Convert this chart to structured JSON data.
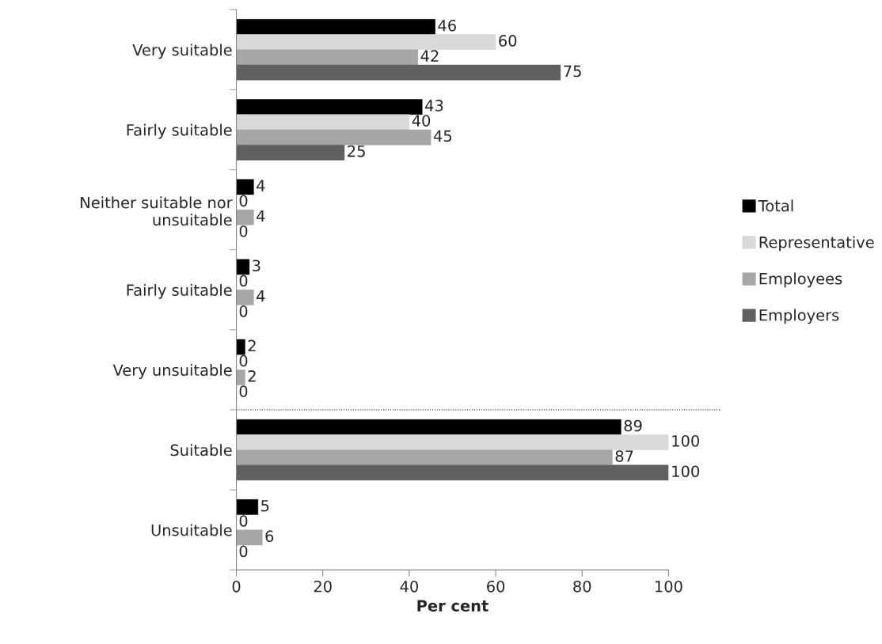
{
  "chart_data": {
    "type": "bar",
    "orientation": "horizontal",
    "xlabel": "Per cent",
    "categories": [
      "Very suitable",
      "Fairly suitable",
      "Neither suitable nor\nunsuitable",
      "Fairly suitable",
      "Very unsuitable",
      "Suitable",
      "Unsuitable"
    ],
    "series": [
      {
        "name": "Total",
        "color": "#000000",
        "values": [
          46,
          43,
          4,
          3,
          2,
          89,
          5
        ]
      },
      {
        "name": "Representative",
        "color": "#d9d9d9",
        "values": [
          60,
          40,
          0,
          0,
          0,
          100,
          0
        ]
      },
      {
        "name": "Employees",
        "color": "#a6a6a6",
        "values": [
          42,
          45,
          4,
          4,
          2,
          87,
          6
        ]
      },
      {
        "name": "Employers",
        "color": "#606060",
        "values": [
          75,
          25,
          0,
          0,
          0,
          100,
          0
        ]
      }
    ],
    "xlim": [
      0,
      100
    ],
    "xticks": [
      0,
      20,
      40,
      60,
      80,
      100
    ],
    "data_labels": true,
    "grid": false,
    "legend": "right"
  }
}
